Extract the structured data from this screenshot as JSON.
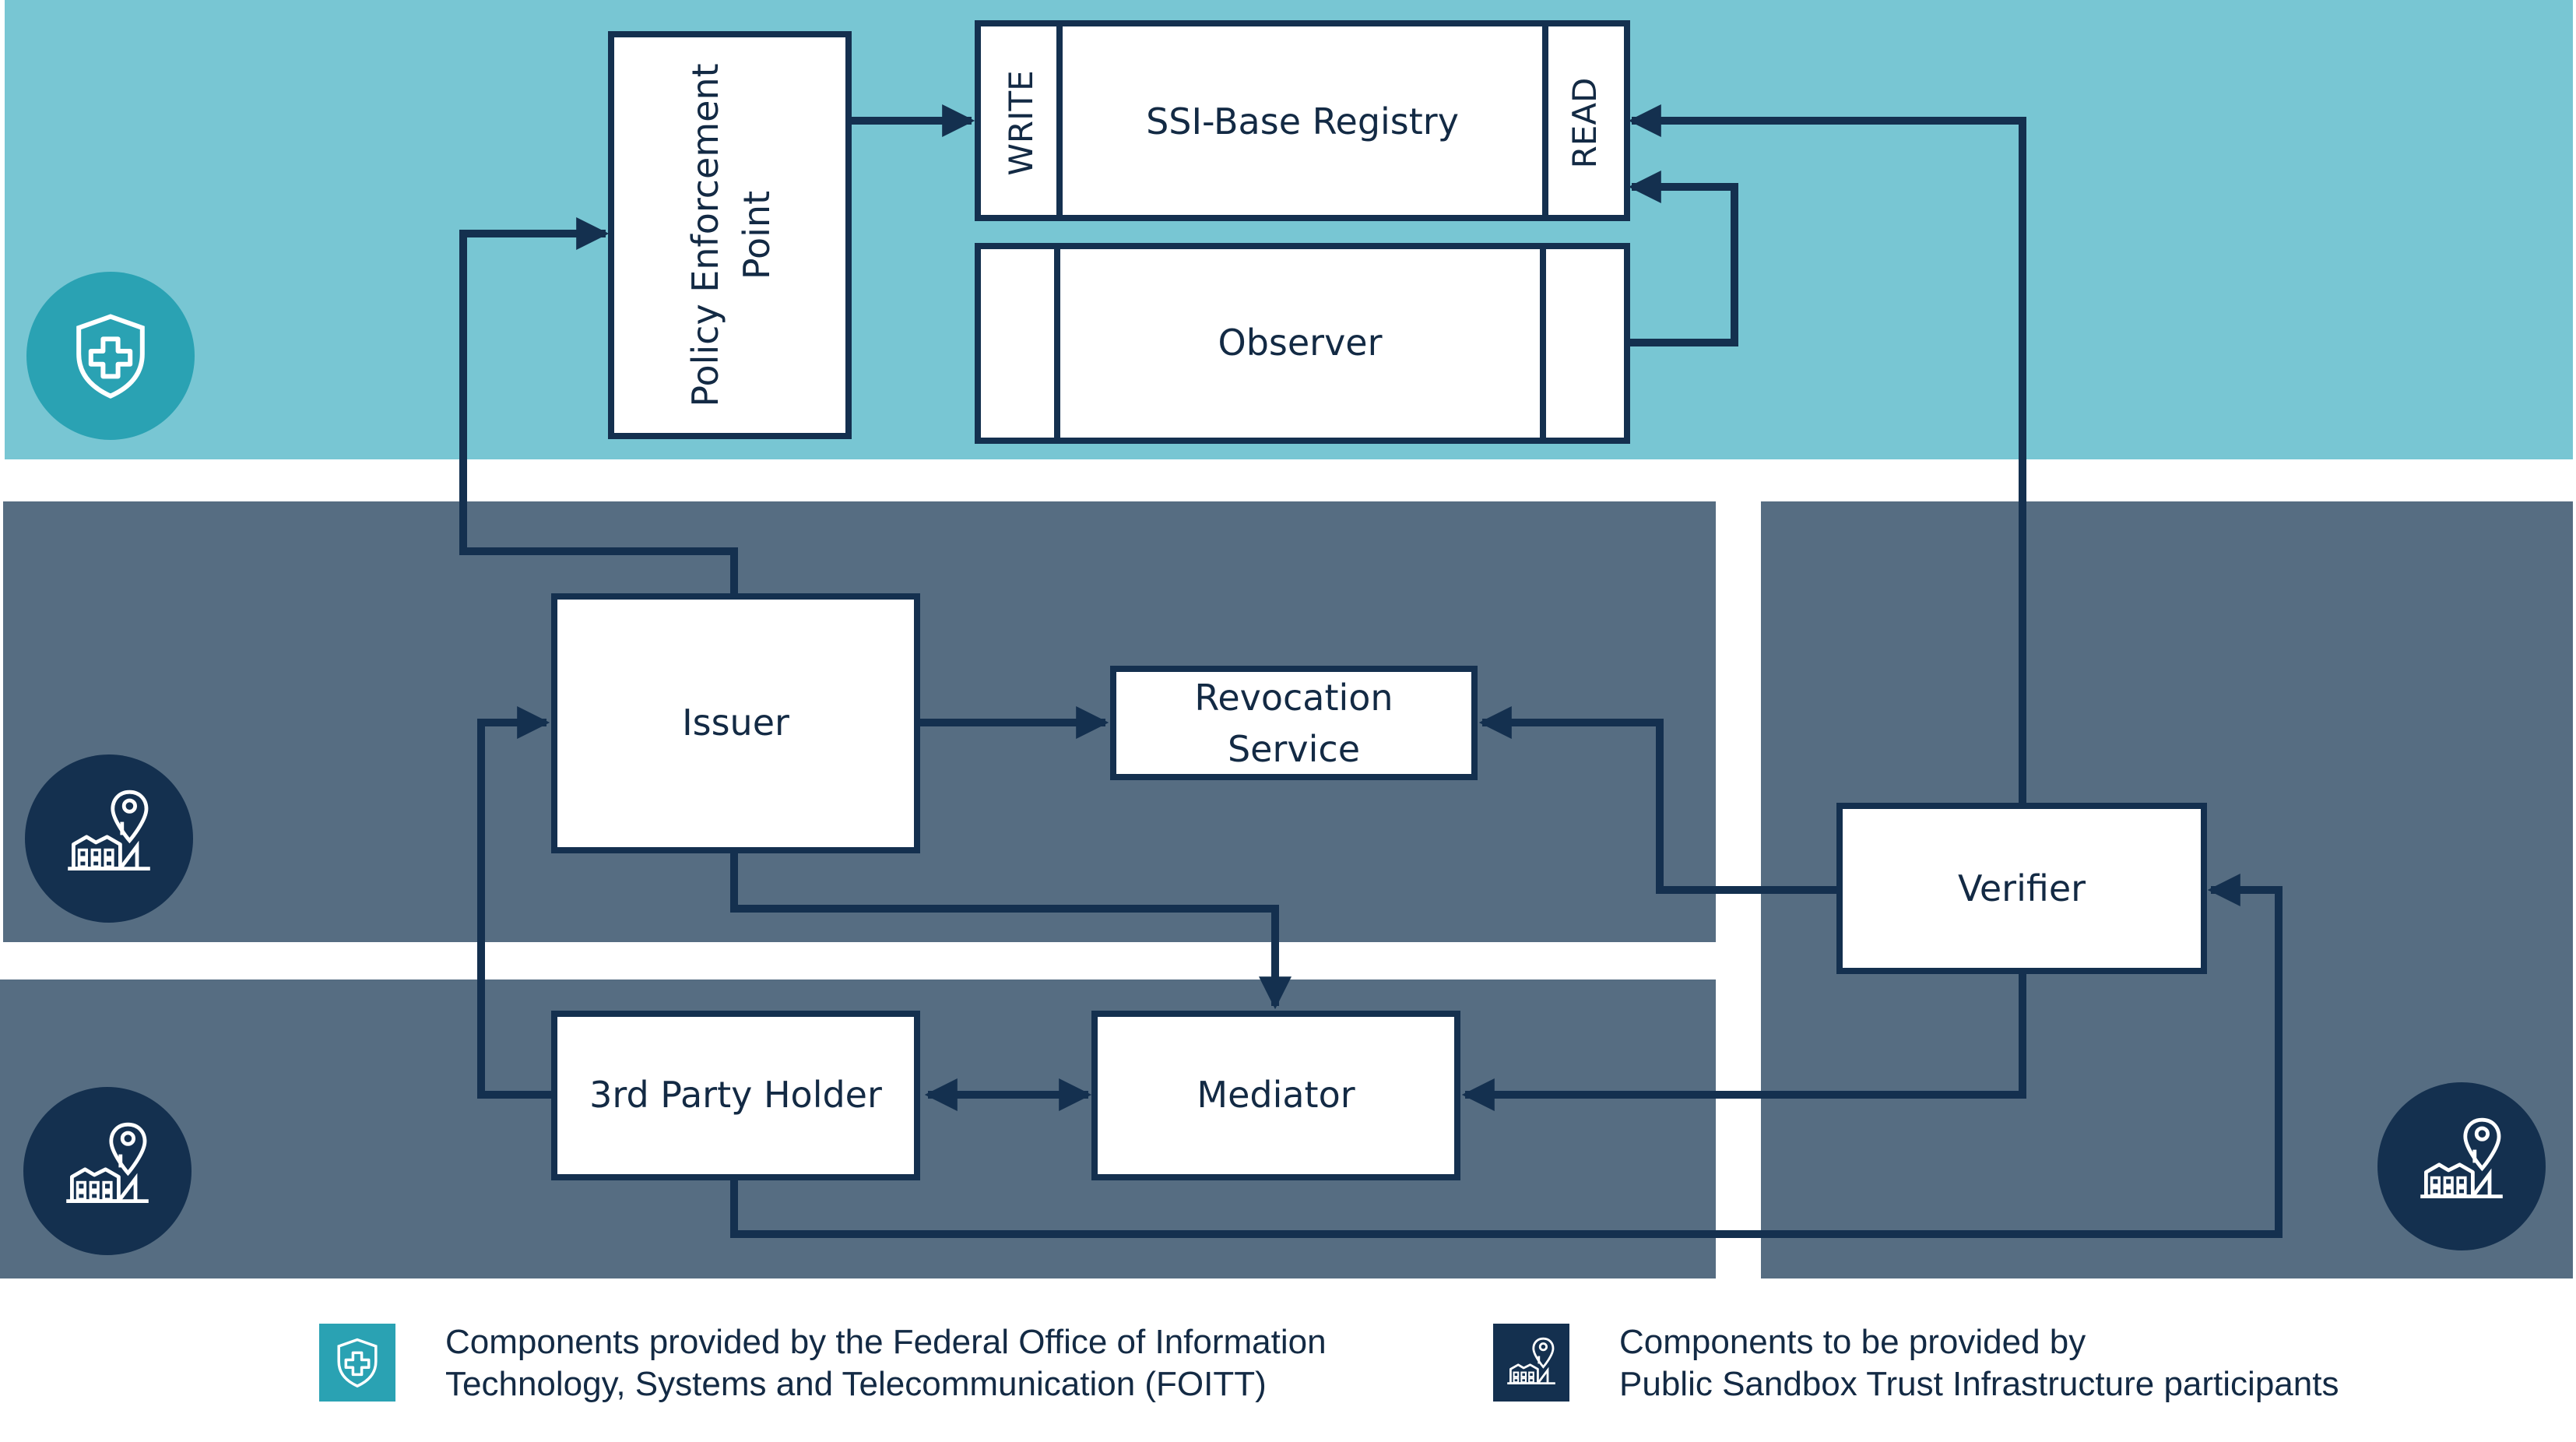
{
  "colors": {
    "foitt_band": "#78c6d3",
    "participant_band": "#566d82",
    "box_fill": "#ffffff",
    "line": "#14304f",
    "foitt_badge": "#2aa2b3",
    "participant_badge": "#14304f"
  },
  "components": {
    "pep_line1": "Policy Enforcement",
    "pep_line2": "Point",
    "registry": "SSI-Base Registry",
    "registry_write": "WRITE",
    "registry_read": "READ",
    "observer": "Observer",
    "issuer": "Issuer",
    "revocation_line1": "Revocation",
    "revocation_line2": "Service",
    "verifier": "Verifier",
    "holder": "3rd Party Holder",
    "mediator": "Mediator"
  },
  "icons": {
    "foitt": "shield-cross-icon",
    "participant": "building-location-pin-icon"
  },
  "legend": {
    "foitt_line1": "Components provided by the Federal Office of Information",
    "foitt_line2": "Technology, Systems and Telecommunication (FOITT)",
    "participant_line1": "Components to be provided by",
    "participant_line2": "Public Sandbox Trust Infrastructure participants"
  }
}
